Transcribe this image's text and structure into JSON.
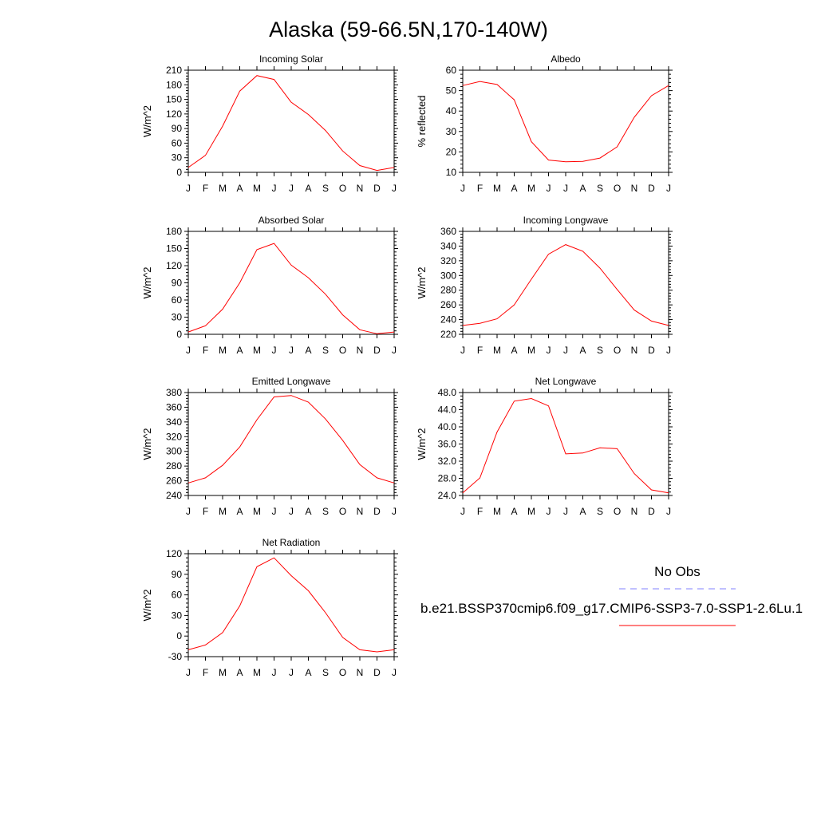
{
  "figure": {
    "title": "Alaska (59-66.5N,170-140W)",
    "legend": {
      "obs_label": "No Obs",
      "obs_color": "#8080ff",
      "model_label": "b.e21.BSSP370cmip6.f09_g17.CMIP6-SSP3-7.0-SSP1-2.6Lu.1",
      "model_color": "#ff0000"
    }
  },
  "chart_data": [
    {
      "type": "line",
      "title": "Incoming Solar",
      "ylabel": "W/m^2",
      "categories": [
        "J",
        "F",
        "M",
        "A",
        "M",
        "J",
        "J",
        "A",
        "S",
        "O",
        "N",
        "D",
        "J"
      ],
      "ylim": [
        0,
        210
      ],
      "yticks": [
        0,
        30,
        60,
        90,
        120,
        150,
        180,
        210
      ],
      "series": [
        {
          "values": [
            10,
            35,
            95,
            167,
            199,
            191,
            144,
            119,
            86,
            44,
            14,
            4,
            10
          ]
        }
      ]
    },
    {
      "type": "line",
      "title": "Albedo",
      "ylabel": "% reflected",
      "categories": [
        "J",
        "F",
        "M",
        "A",
        "M",
        "J",
        "J",
        "A",
        "S",
        "O",
        "N",
        "D",
        "J"
      ],
      "ylim": [
        10,
        60
      ],
      "yticks": [
        10,
        20,
        30,
        40,
        50,
        60
      ],
      "series": [
        {
          "values": [
            52.5,
            54.5,
            53,
            45.5,
            25,
            16,
            15.2,
            15.4,
            17,
            22.5,
            37,
            47.5,
            52.5
          ]
        }
      ]
    },
    {
      "type": "line",
      "title": "Absorbed Solar",
      "ylabel": "W/m^2",
      "categories": [
        "J",
        "F",
        "M",
        "A",
        "M",
        "J",
        "J",
        "A",
        "S",
        "O",
        "N",
        "D",
        "J"
      ],
      "ylim": [
        0,
        180
      ],
      "yticks": [
        0,
        30,
        60,
        90,
        120,
        150,
        180
      ],
      "series": [
        {
          "values": [
            4,
            15,
            44,
            90,
            148,
            159,
            121,
            99,
            70,
            34,
            8,
            1,
            4
          ]
        }
      ]
    },
    {
      "type": "line",
      "title": "Incoming Longwave",
      "ylabel": "W/m^2",
      "categories": [
        "J",
        "F",
        "M",
        "A",
        "M",
        "J",
        "J",
        "A",
        "S",
        "O",
        "N",
        "D",
        "J"
      ],
      "ylim": [
        220,
        360
      ],
      "yticks": [
        220,
        240,
        260,
        280,
        300,
        320,
        340,
        360
      ],
      "series": [
        {
          "values": [
            232,
            235,
            241,
            260,
            295,
            329,
            342,
            333,
            310,
            281,
            253,
            238,
            232
          ]
        }
      ]
    },
    {
      "type": "line",
      "title": "Emitted Longwave",
      "ylabel": "W/m^2",
      "categories": [
        "J",
        "F",
        "M",
        "A",
        "M",
        "J",
        "J",
        "A",
        "S",
        "O",
        "N",
        "D",
        "J"
      ],
      "ylim": [
        240,
        380
      ],
      "yticks": [
        240,
        260,
        280,
        300,
        320,
        340,
        360,
        380
      ],
      "series": [
        {
          "values": [
            257,
            264,
            281,
            306,
            343,
            374,
            376,
            367,
            344,
            315,
            282,
            264,
            257
          ]
        }
      ]
    },
    {
      "type": "line",
      "title": "Net Longwave",
      "ylabel": "W/m^2",
      "categories": [
        "J",
        "F",
        "M",
        "A",
        "M",
        "J",
        "J",
        "A",
        "S",
        "O",
        "N",
        "D",
        "J"
      ],
      "ylim": [
        24,
        48
      ],
      "yticks": [
        "24.0",
        "28.0",
        "32.0",
        "36.0",
        "40.0",
        "44.0",
        "48.0"
      ],
      "series": [
        {
          "values": [
            24.6,
            28.1,
            38.8,
            46,
            46.6,
            44.9,
            33.7,
            33.9,
            35.1,
            34.9,
            29.1,
            25.3,
            24.6
          ]
        }
      ]
    },
    {
      "type": "line",
      "title": "Net Radiation",
      "ylabel": "W/m^2",
      "categories": [
        "J",
        "F",
        "M",
        "A",
        "M",
        "J",
        "J",
        "A",
        "S",
        "O",
        "N",
        "D",
        "J"
      ],
      "ylim": [
        -30,
        120
      ],
      "yticks": [
        -30,
        0,
        30,
        60,
        90,
        120
      ],
      "series": [
        {
          "values": [
            -20,
            -13,
            5,
            44,
            101,
            114,
            88,
            66,
            34,
            -2,
            -20,
            -23,
            -20
          ]
        }
      ]
    }
  ]
}
